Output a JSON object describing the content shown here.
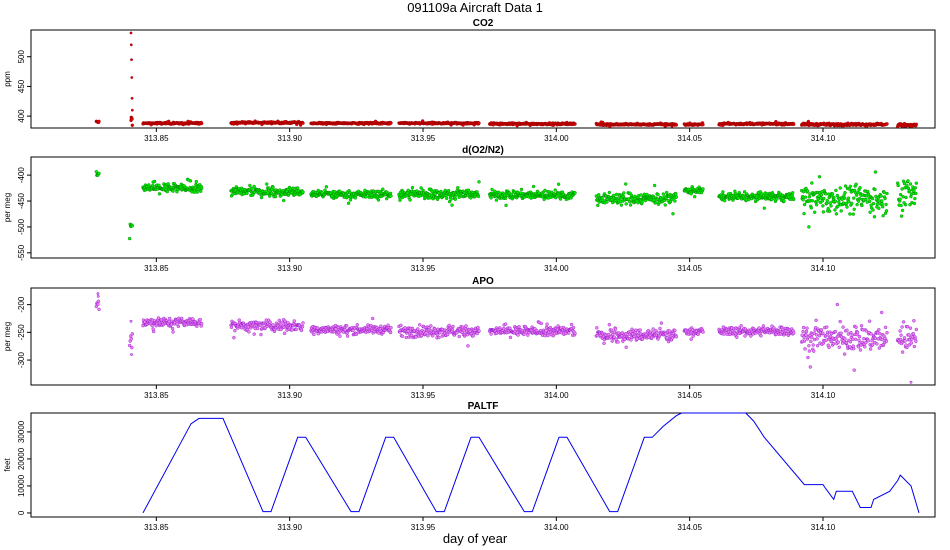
{
  "figure": {
    "title": "091109a   Aircraft Data 1",
    "xlabel": "day of year",
    "x_ticks": [
      313.85,
      313.9,
      313.95,
      314.0,
      314.05,
      314.1
    ],
    "x_tick_labels": [
      "313.85",
      "313.90",
      "313.95",
      "314.00",
      "314.05",
      "314.10"
    ],
    "xlim": [
      313.803,
      314.142
    ]
  },
  "chart_data": [
    {
      "type": "scatter",
      "title": "CO2",
      "ylabel": "ppm",
      "ylim": [
        380,
        545
      ],
      "y_ticks": [
        400,
        450,
        500
      ],
      "y_tick_labels": [
        "400",
        "450",
        "500"
      ],
      "color": "#e00000",
      "edge_color": "#8b0000",
      "segments": [
        {
          "x0": 313.8275,
          "x1": 313.8285,
          "level": 390,
          "noise": 2
        },
        {
          "x0": 313.8405,
          "x1": 313.841,
          "level": 395,
          "noise": 4
        },
        {
          "x0": 313.845,
          "x1": 313.867,
          "level": 388,
          "noise": 1.2
        },
        {
          "x0": 313.878,
          "x1": 313.905,
          "level": 389,
          "noise": 1.2
        },
        {
          "x0": 313.908,
          "x1": 313.938,
          "level": 388,
          "noise": 1.2
        },
        {
          "x0": 313.941,
          "x1": 313.971,
          "level": 388,
          "noise": 1.2
        },
        {
          "x0": 313.975,
          "x1": 314.007,
          "level": 387,
          "noise": 1.2
        },
        {
          "x0": 314.015,
          "x1": 314.045,
          "level": 386,
          "noise": 1.2
        },
        {
          "x0": 314.048,
          "x1": 314.055,
          "level": 386,
          "noise": 1.2
        },
        {
          "x0": 314.061,
          "x1": 314.089,
          "level": 387,
          "noise": 1.2
        },
        {
          "x0": 314.092,
          "x1": 314.124,
          "level": 386,
          "noise": 1.5
        },
        {
          "x0": 314.128,
          "x1": 314.135,
          "level": 385,
          "noise": 2
        }
      ],
      "spike_points": [
        [
          313.8405,
          540
        ],
        [
          313.8406,
          520
        ],
        [
          313.8407,
          495
        ],
        [
          313.8408,
          465
        ],
        [
          313.8409,
          430
        ],
        [
          313.841,
          410
        ]
      ]
    },
    {
      "type": "scatter",
      "title": "d(O2/N2)",
      "ylabel": "per meg",
      "ylim": [
        -560,
        -365
      ],
      "y_ticks": [
        -400,
        -450,
        -500,
        -550
      ],
      "y_tick_labels": [
        "-400",
        "-450",
        "-500",
        "-550"
      ],
      "color": "#00ee00",
      "edge_color": "#006400",
      "segments": [
        {
          "x0": 313.8275,
          "x1": 313.8285,
          "level": -400,
          "noise": 8
        },
        {
          "x0": 313.84,
          "x1": 313.841,
          "level": -505,
          "noise": 25
        },
        {
          "x0": 313.845,
          "x1": 313.867,
          "level": -425,
          "noise": 7
        },
        {
          "x0": 313.878,
          "x1": 313.905,
          "level": -432,
          "noise": 7
        },
        {
          "x0": 313.908,
          "x1": 313.938,
          "level": -437,
          "noise": 6
        },
        {
          "x0": 313.941,
          "x1": 313.971,
          "level": -437,
          "noise": 8
        },
        {
          "x0": 313.975,
          "x1": 314.007,
          "level": -438,
          "noise": 7
        },
        {
          "x0": 314.015,
          "x1": 314.045,
          "level": -445,
          "noise": 9
        },
        {
          "x0": 314.048,
          "x1": 314.055,
          "level": -430,
          "noise": 5
        },
        {
          "x0": 314.061,
          "x1": 314.089,
          "level": -442,
          "noise": 6
        },
        {
          "x0": 314.092,
          "x1": 314.124,
          "level": -445,
          "noise": 22
        },
        {
          "x0": 314.128,
          "x1": 314.135,
          "level": -435,
          "noise": 25
        }
      ],
      "spike_points": []
    },
    {
      "type": "scatter",
      "title": "APO",
      "ylabel": "per meg",
      "ylim": [
        -345,
        -170
      ],
      "y_ticks": [
        -200,
        -250,
        -300
      ],
      "y_tick_labels": [
        "-200",
        "-250",
        "-300"
      ],
      "color": "#ee82ee",
      "edge_color": "#7b00c8",
      "segments": [
        {
          "x0": 313.8275,
          "x1": 313.8285,
          "level": -200,
          "noise": 10
        },
        {
          "x0": 313.84,
          "x1": 313.841,
          "level": -260,
          "noise": 15
        },
        {
          "x0": 313.845,
          "x1": 313.867,
          "level": -232,
          "noise": 7
        },
        {
          "x0": 313.878,
          "x1": 313.905,
          "level": -238,
          "noise": 8
        },
        {
          "x0": 313.908,
          "x1": 313.938,
          "level": -245,
          "noise": 6
        },
        {
          "x0": 313.941,
          "x1": 313.971,
          "level": -248,
          "noise": 8
        },
        {
          "x0": 313.975,
          "x1": 314.007,
          "level": -248,
          "noise": 7
        },
        {
          "x0": 314.015,
          "x1": 314.045,
          "level": -255,
          "noise": 9
        },
        {
          "x0": 314.048,
          "x1": 314.055,
          "level": -248,
          "noise": 5
        },
        {
          "x0": 314.061,
          "x1": 314.089,
          "level": -248,
          "noise": 6
        },
        {
          "x0": 314.092,
          "x1": 314.124,
          "level": -260,
          "noise": 20
        },
        {
          "x0": 314.128,
          "x1": 314.135,
          "level": -258,
          "noise": 22
        }
      ],
      "spike_points": [
        [
          313.8281,
          -180
        ],
        [
          313.8282,
          -185
        ],
        [
          313.8405,
          -230
        ],
        [
          313.8407,
          -290
        ],
        [
          314.133,
          -340
        ]
      ]
    },
    {
      "type": "line",
      "title": "PALTF",
      "ylabel": "feet",
      "ylim": [
        -1500,
        37000
      ],
      "y_ticks": [
        0,
        10000,
        20000,
        30000
      ],
      "y_tick_labels": [
        "0",
        "10000",
        "20000",
        "30000"
      ],
      "color": "#0000ee",
      "x": [
        313.845,
        313.863,
        313.866,
        313.875,
        313.89,
        313.893,
        313.903,
        313.906,
        313.923,
        313.926,
        313.936,
        313.939,
        313.955,
        313.958,
        313.968,
        313.971,
        313.988,
        313.991,
        314.001,
        314.004,
        314.02,
        314.023,
        314.033,
        314.036,
        314.04,
        314.045,
        314.047,
        314.057,
        314.062,
        314.071,
        314.074,
        314.078,
        314.093,
        314.097,
        314.1,
        314.101,
        314.104,
        314.105,
        314.111,
        314.114,
        314.118,
        314.119,
        314.125,
        314.128,
        314.129,
        314.133,
        314.136
      ],
      "y": [
        0,
        33000,
        35000,
        35000,
        500,
        500,
        28000,
        28000,
        500,
        500,
        28000,
        28000,
        500,
        500,
        28000,
        28000,
        500,
        500,
        28000,
        28000,
        500,
        500,
        28000,
        28000,
        32000,
        36000,
        37000,
        37000,
        37000,
        37000,
        34000,
        28000,
        10500,
        10500,
        10500,
        9000,
        5000,
        8000,
        8000,
        2000,
        2000,
        5000,
        8000,
        12000,
        14000,
        10000,
        0
      ]
    }
  ]
}
